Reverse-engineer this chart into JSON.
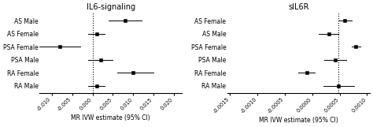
{
  "panel1_title": "IL6-signaling",
  "panel2_title": "sIL6R",
  "xlabel": "MR IVW estimate (95% CI)",
  "panel1_categories": [
    "AS Male",
    "AS Female",
    "PSA Female",
    "PSA Male",
    "RA Female",
    "RA Male"
  ],
  "panel2_categories": [
    "AS Female",
    "AS Male",
    "PSA Female",
    "PSA Male",
    "RA Female",
    "RA Male"
  ],
  "panel1": {
    "estimates": [
      0.008,
      0.001,
      -0.008,
      0.002,
      0.01,
      0.001
    ],
    "ci_low": [
      0.004,
      -0.001,
      -0.013,
      -0.001,
      0.006,
      -0.001
    ],
    "ci_high": [
      0.012,
      0.003,
      -0.003,
      0.005,
      0.015,
      0.003
    ],
    "xlim": [
      -0.013,
      0.022
    ],
    "xticks": [
      -0.01,
      -0.005,
      0.0,
      0.005,
      0.01,
      0.015,
      0.02
    ],
    "xticklabels": [
      "-0.010",
      "-0.005",
      "0.000",
      "0.005",
      "0.010",
      "0.015",
      "0.020"
    ],
    "vline": 0.0
  },
  "panel2": {
    "estimates": [
      0.0006,
      0.0003,
      0.0008,
      0.00042,
      -0.0001,
      0.00048
    ],
    "ci_low": [
      0.00048,
      0.00012,
      0.00072,
      0.00022,
      -0.00025,
      0.0002
    ],
    "ci_high": [
      0.00072,
      0.00048,
      0.00088,
      0.00062,
      5e-05,
      0.00076
    ],
    "xlim": [
      -0.00155,
      0.00105
    ],
    "xticks": [
      -0.0015,
      -0.001,
      -0.0005,
      0.0,
      0.0005,
      0.001
    ],
    "xticklabels": [
      "-0.0015",
      "-0.0010",
      "-0.0005",
      "0.0000",
      "0.0005",
      "0.0010"
    ],
    "vline": 0.00048
  },
  "marker": "s",
  "marker_size": 3.5,
  "marker_color": "black",
  "line_color": "black",
  "vline_color": "black",
  "vline_style": ":",
  "font_size": 5.5,
  "title_font_size": 7,
  "xlabel_font_size": 5.5,
  "tick_fontsize": 4.8
}
